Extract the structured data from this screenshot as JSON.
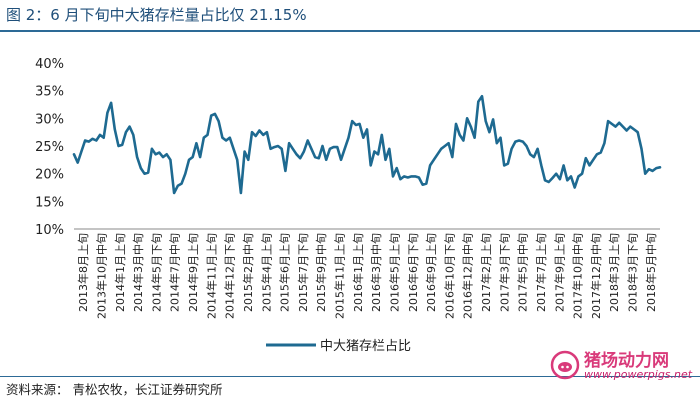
{
  "title": "图 2：6 月下旬中大猪存栏量占比仅 21.15%",
  "source": "资料来源：  青松农牧，长江证券研究所",
  "watermark": {
    "name": "猪场动力网",
    "url": "www.powerpigs.net"
  },
  "colors": {
    "line": "#1e6a91",
    "axis": "#888888",
    "title": "#1f4f7a"
  },
  "chart_data": {
    "type": "line",
    "title": "",
    "xlabel": "",
    "ylabel": "",
    "ylim": [
      10,
      40
    ],
    "ytick_labels": [
      "40%",
      "35%",
      "30%",
      "25%",
      "20%",
      "15%",
      "10%"
    ],
    "legend": "bottom",
    "grid": false,
    "x_tick_labels": [
      "2013年8月上旬",
      "2013年10月中旬",
      "2014年1月上旬",
      "2014年3月中旬",
      "2014年5月下旬",
      "2014年7月中旬",
      "2014年9月上旬",
      "2014年11月上旬",
      "2014年12月下旬",
      "2015年2月中旬",
      "2015年4月上旬",
      "2015年6月上旬",
      "2015年7月下旬",
      "2015年9月中旬",
      "2015年11月上旬",
      "2016年1月上旬",
      "2016年3月中旬",
      "2016年5月上旬",
      "2016年6月下旬",
      "2016年9月上旬",
      "2016年10月下旬",
      "2016年12月中旬",
      "2017年2月上旬",
      "2017年3月下旬",
      "2017年5月中旬",
      "2017年7月上旬",
      "2017年9月上旬",
      "2017年10月中旬",
      "2017年12月中旬",
      "2018年3月上旬",
      "2018年3月下旬",
      "2018年5月中旬"
    ],
    "series": [
      {
        "name": "中大猪存栏占比",
        "values": [
          23.5,
          22.0,
          24.0,
          26.0,
          25.8,
          26.3,
          26.0,
          27.0,
          26.5,
          31.0,
          32.8,
          28.0,
          25.0,
          25.2,
          27.5,
          28.5,
          27.0,
          23.0,
          21.0,
          20.0,
          20.2,
          24.5,
          23.5,
          23.8,
          23.0,
          23.5,
          22.5,
          16.5,
          17.8,
          18.2,
          20.0,
          22.5,
          23.0,
          25.5,
          23.0,
          26.5,
          27.0,
          30.5,
          30.8,
          29.5,
          26.5,
          26.0,
          26.5,
          24.5,
          22.5,
          16.5,
          24.0,
          22.5,
          27.5,
          26.8,
          27.8,
          27.0,
          27.5,
          24.5,
          24.8,
          25.0,
          24.5,
          20.5,
          25.5,
          24.5,
          23.5,
          22.8,
          24.0,
          26.0,
          24.5,
          23.0,
          22.8,
          25.0,
          22.5,
          24.5,
          24.8,
          24.8,
          22.5,
          24.5,
          26.5,
          29.5,
          28.8,
          29.0,
          26.5,
          28.0,
          21.5,
          24.0,
          23.5,
          27.0,
          22.5,
          24.5,
          19.5,
          21.0,
          19.0,
          19.5,
          19.3,
          19.5,
          19.5,
          19.3,
          18.0,
          18.2,
          21.5,
          22.5,
          23.5,
          24.5,
          25.0,
          25.5,
          23.0,
          29.0,
          27.0,
          26.0,
          30.0,
          28.5,
          26.5,
          33.0,
          34.0,
          29.5,
          27.5,
          29.8,
          25.5,
          26.5,
          21.5,
          21.8,
          24.5,
          25.8,
          26.0,
          25.8,
          25.0,
          23.5,
          23.0,
          24.5,
          21.5,
          18.8,
          18.5,
          19.2,
          20.0,
          19.0,
          21.5,
          18.8,
          19.5,
          17.5,
          19.5,
          20.0,
          22.8,
          21.5,
          22.5,
          23.5,
          23.8,
          25.5,
          29.5,
          29.0,
          28.5,
          29.2,
          28.5,
          27.8,
          28.5,
          28.0,
          27.5,
          24.5,
          20.0,
          20.8,
          20.5,
          21.0,
          21.15
        ]
      }
    ]
  }
}
